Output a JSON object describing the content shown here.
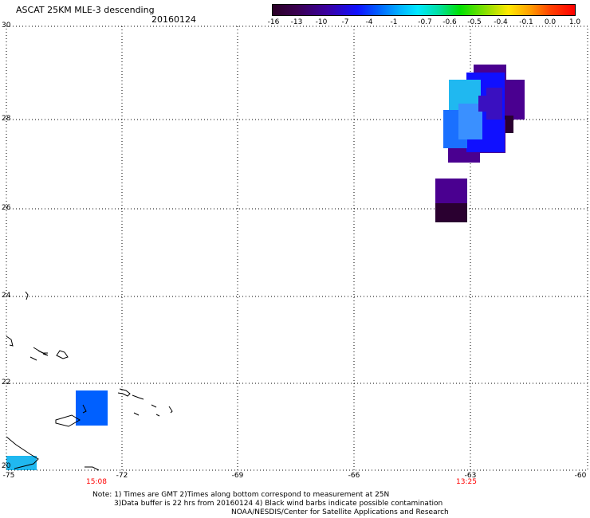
{
  "header": {
    "title": "ASCAT 25KM MLE-3 descending",
    "date": "20160124"
  },
  "colorbar": {
    "labels": [
      "-16",
      "-13",
      "-10",
      "-7",
      "-4",
      "-1",
      "-0.7",
      "-0.6",
      "-0.5",
      "-0.4",
      "-0.1",
      "0.0",
      "1.0"
    ]
  },
  "axes": {
    "y_ticks": [
      "30",
      "28",
      "26",
      "24",
      "22",
      "20"
    ],
    "x_ticks": [
      "-75",
      "-72",
      "-69",
      "-66",
      "-63",
      "-60"
    ]
  },
  "times": {
    "left": "15:08",
    "right": "13:25"
  },
  "notes": {
    "line1": "Note: 1) Times are GMT 2)Times along bottom correspond to measurement at 25N",
    "line2": "3)Data buffer is 22 hrs from 20160124 4) Black wind barbs indicate possible contamination",
    "line3": "NOAA/NESDIS/Center for Satellite Applications and Research"
  },
  "colors": {
    "dark_purple": "#2a0030",
    "purple": "#4a0090",
    "indigo": "#3a10c0",
    "blue": "#0060ff",
    "light_blue": "#20b8f0",
    "time_red": "#ff0000"
  }
}
